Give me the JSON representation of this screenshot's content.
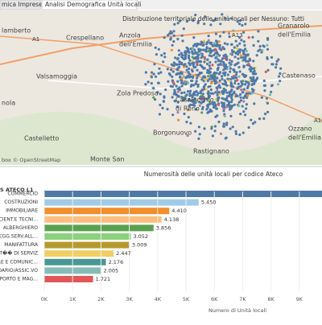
{
  "tabs": [
    "mica Imprese",
    "Analisi Demografica Unità locali"
  ],
  "map": {
    "title": "Distribuzione territoriale delle unità locali per Nessuno: Tutti",
    "places": [
      [
        "lamberto"
      ],
      [
        "Crespellano"
      ],
      [
        "Anzola",
        "dell'Emilia"
      ],
      [
        "Granarolo",
        "dell'Emilia"
      ],
      [
        "Valsamoggia"
      ],
      [
        "Castenaso"
      ],
      [
        "Zola Predosa"
      ],
      [
        "Casalecchio",
        "di Reno"
      ],
      [
        "nola"
      ],
      [
        "Castelletto"
      ],
      [
        "Borgonuovo"
      ],
      [
        "Rastignano"
      ],
      [
        "Ozzano",
        "dell'Emilia"
      ],
      [
        "Monte San"
      ]
    ],
    "roads": [
      "A1",
      "A13",
      "A14"
    ],
    "attribution": "box © OpenStreetMap"
  },
  "chart_data": {
    "type": "bar",
    "orientation": "horizontal",
    "title": "Numerosità delle unità locali per codice Ateco",
    "category_header": "S ATECO L1",
    "x_label": "Numero di Unità locali",
    "categories": [
      "COMMERCIO",
      "COSTRUZIONI",
      "IMMOBILIARE",
      "SCIENT.E TECNI...",
      "ALBERGHIERO",
      "OLEGG.SERV.ALL...",
      "MANIFATTURA",
      "T�� DI SERVIZ",
      "RE E COMUNIC...",
      "DARIO/ASSIC.VO",
      "ASPORTO E MAG..."
    ],
    "values": [
      10000,
      5450,
      4410,
      4138,
      3856,
      3052,
      3009,
      2447,
      2176,
      2005,
      1721
    ],
    "value_labels": [
      null,
      "5.450",
      "4.410",
      "4.138",
      "3.856",
      "3.052",
      "3.009",
      "2.447",
      "2.176",
      "2.005",
      "1.721"
    ],
    "colors": [
      "#4e79a7",
      "#a0cbe8",
      "#f28e2b",
      "#ffbe7d",
      "#59a14f",
      "#8cd17d",
      "#b6992d",
      "#f1ce63",
      "#499894",
      "#86bcb6",
      "#e15759"
    ],
    "xlim": [
      0,
      9800
    ],
    "xticks": [
      {
        "value": 0,
        "label": "0K"
      },
      {
        "value": 1000,
        "label": "1K"
      },
      {
        "value": 2000,
        "label": "2K"
      },
      {
        "value": 3000,
        "label": "3K"
      },
      {
        "value": 4000,
        "label": "4K"
      },
      {
        "value": 5000,
        "label": "5K"
      },
      {
        "value": 6000,
        "label": "6K"
      },
      {
        "value": 7000,
        "label": "7K"
      },
      {
        "value": 8000,
        "label": "8K"
      },
      {
        "value": 9000,
        "label": "9K"
      }
    ]
  }
}
